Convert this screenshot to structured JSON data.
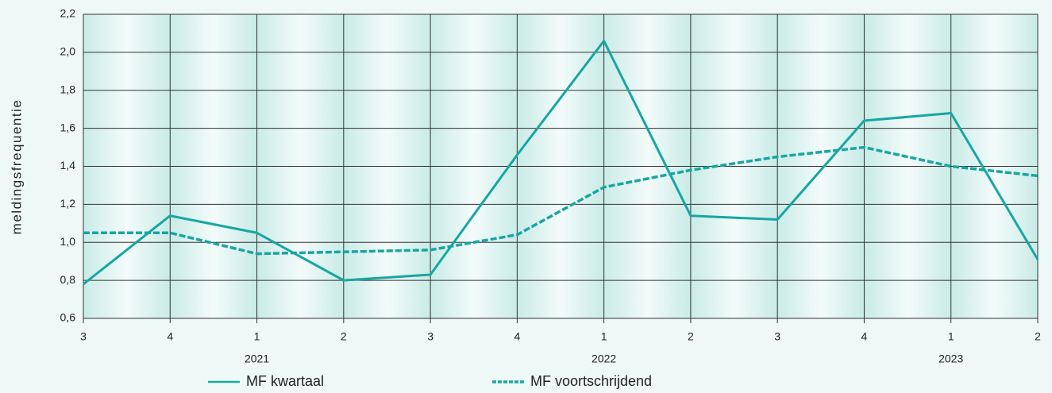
{
  "chart_data": {
    "type": "line",
    "y_label": "meldingsfrequentie",
    "categories": [
      "3",
      "4",
      "1",
      "2",
      "3",
      "4",
      "1",
      "2",
      "3",
      "4",
      "1",
      "2"
    ],
    "categories2": [
      null,
      null,
      "2021",
      null,
      null,
      null,
      "2022",
      null,
      null,
      null,
      "2023",
      null
    ],
    "series": [
      {
        "name": "MF kwartaal",
        "color": "#17a6a4",
        "dash": false,
        "values": [
          0.78,
          1.14,
          1.05,
          0.8,
          0.83,
          1.46,
          2.06,
          1.14,
          1.12,
          1.64,
          1.68,
          0.91
        ]
      },
      {
        "name": "MF voortschrijdend",
        "color": "#17a6a4",
        "dash": true,
        "values": [
          1.05,
          1.05,
          0.94,
          0.95,
          0.96,
          1.04,
          1.29,
          1.38,
          1.45,
          1.5,
          1.4,
          1.35
        ]
      }
    ],
    "ylim": [
      0.6,
      2.2
    ],
    "yticks": [
      {
        "value": 0.6,
        "label": "0,6"
      },
      {
        "value": 0.8,
        "label": "0,8"
      },
      {
        "value": 1.0,
        "label": "1,0"
      },
      {
        "value": 1.2,
        "label": "1,2"
      },
      {
        "value": 1.4,
        "label": "1,4"
      },
      {
        "value": 1.6,
        "label": "1,6"
      },
      {
        "value": 1.8,
        "label": "1,8"
      },
      {
        "value": 2.0,
        "label": "2,0"
      },
      {
        "value": 2.2,
        "label": "2,2"
      }
    ],
    "grid": true
  }
}
